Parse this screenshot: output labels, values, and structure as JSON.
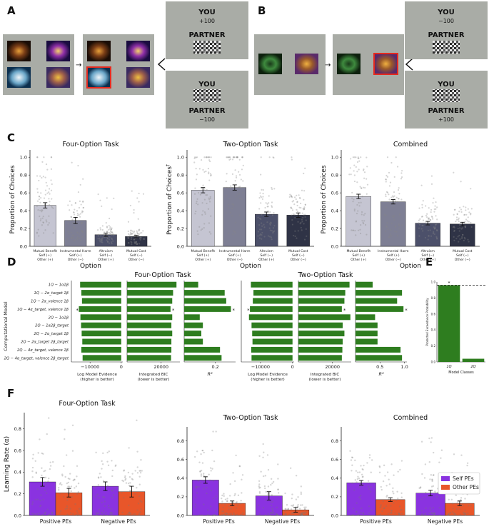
{
  "panels": {
    "A": "A",
    "B": "B",
    "C": "C",
    "D": "D",
    "E": "E",
    "F": "F"
  },
  "schematic": {
    "A_top": {
      "you": "YOU",
      "you_value": "+100",
      "partner": "PARTNER"
    },
    "A_bottom": {
      "you": "YOU",
      "partner": "PARTNER",
      "partner_value": "−100"
    },
    "B_top": {
      "you": "YOU",
      "you_value": "−100",
      "partner": "PARTNER"
    },
    "B_bottom": {
      "you": "YOU",
      "partner": "PARTNER",
      "partner_value": "+100"
    }
  },
  "panel_c": {
    "ylabel": "Proportion of Choices",
    "ylabel_mid": "Proportion of Choices",
    "ylabel_mid_mark": "†",
    "xlabel": "Option",
    "yticks": [
      "0.0",
      "0.2",
      "0.4",
      "0.6",
      "0.8",
      "1.0"
    ],
    "options": [
      {
        "name": "Mutual Benefit",
        "self": "Self (+)",
        "other": "Other (+)"
      },
      {
        "name": "Instrumental Harm",
        "self": "Self (+)",
        "other": "Other (−)"
      },
      {
        "name": "Altruism",
        "self": "Self (−)",
        "other": "Other (+)"
      },
      {
        "name": "Mutual Cost",
        "self": "Self (−)",
        "other": "Other (−)"
      }
    ],
    "colors": [
      "#c5c5d2",
      "#7e7f94",
      "#4c506a",
      "#2f3346"
    ]
  },
  "panel_d": {
    "ylabel": "Computational Model",
    "four_title": "Four-Option Task",
    "two_title": "Two-Option Task",
    "models": [
      "1Q − 1α1β",
      "1Q − 2α_target 1β",
      "1Q − 2α_valence 1β",
      "1Q − 4α_target, valence 1β",
      "2Q − 1α1β",
      "2Q − 1α2β_target",
      "2Q − 2α_target 1β",
      "2Q − 2α_target 2β_target",
      "2Q − 4α_target, valence 1β",
      "2Q − 4α_target, valence 2β_target"
    ],
    "lme_label": "Log Model Evidence",
    "lme_sub": "(higher is better)",
    "bic_label": "Integrated BIC",
    "bic_sub": "(lower is better)",
    "r2_label": "R²",
    "four_lme_ticks": [
      "−10000",
      "0"
    ],
    "bic_ticks": [
      "20000"
    ],
    "four_r2_ticks": [
      "0.2"
    ],
    "two_lme_ticks": [
      "−10000",
      "0"
    ],
    "two_r2_ticks": [
      "0.5",
      "1.0"
    ],
    "star": "*",
    "bar_color": "#2e7d1f"
  },
  "panel_e": {
    "ylabel": "Protected Exceedance Probability",
    "xlabel": "Model Classes",
    "yticks": [
      "0.0",
      "0.2",
      "0.4",
      "0.6",
      "0.8",
      "1.0"
    ],
    "classes": [
      "1Q",
      "2Q"
    ],
    "star": "*"
  },
  "panel_f": {
    "ylabel": "Learning Rate (α)",
    "groups": [
      "Positive PEs",
      "Negative PEs"
    ],
    "legend": [
      {
        "label": "Self PEs",
        "color": "#8a33e0"
      },
      {
        "label": "Other PEs",
        "color": "#e8562a"
      }
    ]
  },
  "chart_data": [
    {
      "type": "bar",
      "title": "Four-Option Task",
      "categories": [
        "Mutual Benefit",
        "Instrumental Harm",
        "Altruism",
        "Mutual Cost"
      ],
      "values": [
        0.46,
        0.29,
        0.13,
        0.11
      ],
      "errors": [
        0.03,
        0.035,
        0.018,
        0.015
      ],
      "ylabel": "Proportion of Choices",
      "xlabel": "Option",
      "ylim": [
        0,
        1.05
      ]
    },
    {
      "type": "bar",
      "title": "Two-Option Task",
      "categories": [
        "Mutual Benefit",
        "Instrumental Harm",
        "Altruism",
        "Mutual Cost"
      ],
      "values": [
        0.63,
        0.66,
        0.36,
        0.35
      ],
      "errors": [
        0.03,
        0.03,
        0.025,
        0.025
      ],
      "ylabel": "Proportion of Choices",
      "xlabel": "Option",
      "ylim": [
        0,
        1.05
      ]
    },
    {
      "type": "bar",
      "title": "Combined",
      "categories": [
        "Mutual Benefit",
        "Instrumental Harm",
        "Altruism",
        "Mutual Cost"
      ],
      "values": [
        0.56,
        0.5,
        0.26,
        0.25
      ],
      "errors": [
        0.025,
        0.025,
        0.02,
        0.02
      ],
      "ylabel": "Proportion of Choices",
      "xlabel": "Option",
      "ylim": [
        0,
        1.05
      ]
    },
    {
      "type": "bar",
      "title": "Four-Option Task",
      "series": [
        {
          "name": "Log Model Evidence",
          "values": [
            -13200,
            -12800,
            -12600,
            -13600,
            -13100,
            -12900,
            -12700,
            -12500,
            -12800,
            -12400
          ],
          "xlim": [
            -16000,
            500
          ]
        },
        {
          "name": "Integrated BIC",
          "values": [
            29000,
            27000,
            26500,
            25500,
            26500,
            26000,
            26500,
            26000,
            26000,
            25800
          ],
          "xlim": [
            0,
            31000
          ]
        },
        {
          "name": "R2",
          "values": [
            0.09,
            0.26,
            0.27,
            0.3,
            0.1,
            0.12,
            0.11,
            0.12,
            0.23,
            0.24
          ],
          "xlim": [
            0,
            0.33
          ]
        }
      ]
    },
    {
      "type": "bar",
      "title": "Two-Option Task",
      "series": [
        {
          "name": "Log Model Evidence",
          "values": [
            -13000,
            -12200,
            -12400,
            -13300,
            -13600,
            -12800,
            -12600,
            -12500,
            -12900,
            -12800
          ],
          "xlim": [
            -16000,
            500
          ]
        },
        {
          "name": "Integrated BIC",
          "values": [
            30000,
            27500,
            27000,
            25500,
            30500,
            26000,
            27000,
            26000,
            25800,
            25500
          ],
          "xlim": [
            0,
            31000
          ]
        },
        {
          "name": "R2",
          "values": [
            0.35,
            0.95,
            0.85,
            0.98,
            0.4,
            0.45,
            0.45,
            0.45,
            0.92,
            0.95
          ],
          "xlim": [
            0,
            1.05
          ]
        }
      ]
    },
    {
      "type": "bar",
      "title": "",
      "categories": [
        "1Q",
        "2Q"
      ],
      "values": [
        0.96,
        0.04
      ],
      "ylabel": "Protected Exceedance Probability",
      "xlabel": "Model Classes",
      "ylim": [
        0,
        1.0
      ],
      "reference_line": 0.96
    },
    {
      "type": "bar",
      "title": "Four-Option Task",
      "categories": [
        "Positive PEs",
        "Negative PEs"
      ],
      "series": [
        {
          "name": "Self PEs",
          "values": [
            0.31,
            0.27
          ],
          "errors": [
            0.04,
            0.04
          ]
        },
        {
          "name": "Other PEs",
          "values": [
            0.21,
            0.22
          ],
          "errors": [
            0.04,
            0.05
          ]
        }
      ],
      "ylabel": "Learning Rate (α)",
      "ylim": [
        0,
        0.95
      ],
      "yticks": [
        0.0,
        0.2,
        0.4,
        0.6,
        0.8
      ]
    },
    {
      "type": "bar",
      "title": "Two-Option Task",
      "categories": [
        "Positive PEs",
        "Negative PEs"
      ],
      "series": [
        {
          "name": "Self PEs",
          "values": [
            0.38,
            0.21
          ],
          "errors": [
            0.035,
            0.045
          ]
        },
        {
          "name": "Other PEs",
          "values": [
            0.13,
            0.06
          ],
          "errors": [
            0.025,
            0.025
          ]
        }
      ],
      "ylim": [
        0,
        0.95
      ],
      "yticks": [
        0.0,
        0.2,
        0.4,
        0.6,
        0.8
      ]
    },
    {
      "type": "bar",
      "title": "Combined",
      "categories": [
        "Positive PEs",
        "Negative PEs"
      ],
      "series": [
        {
          "name": "Self PEs",
          "values": [
            0.35,
            0.24
          ],
          "errors": [
            0.025,
            0.03
          ]
        },
        {
          "name": "Other PEs",
          "values": [
            0.17,
            0.13
          ],
          "errors": [
            0.02,
            0.025
          ]
        }
      ],
      "ylim": [
        0,
        0.95
      ],
      "yticks": [
        0.0,
        0.2,
        0.4,
        0.6,
        0.8
      ]
    }
  ]
}
